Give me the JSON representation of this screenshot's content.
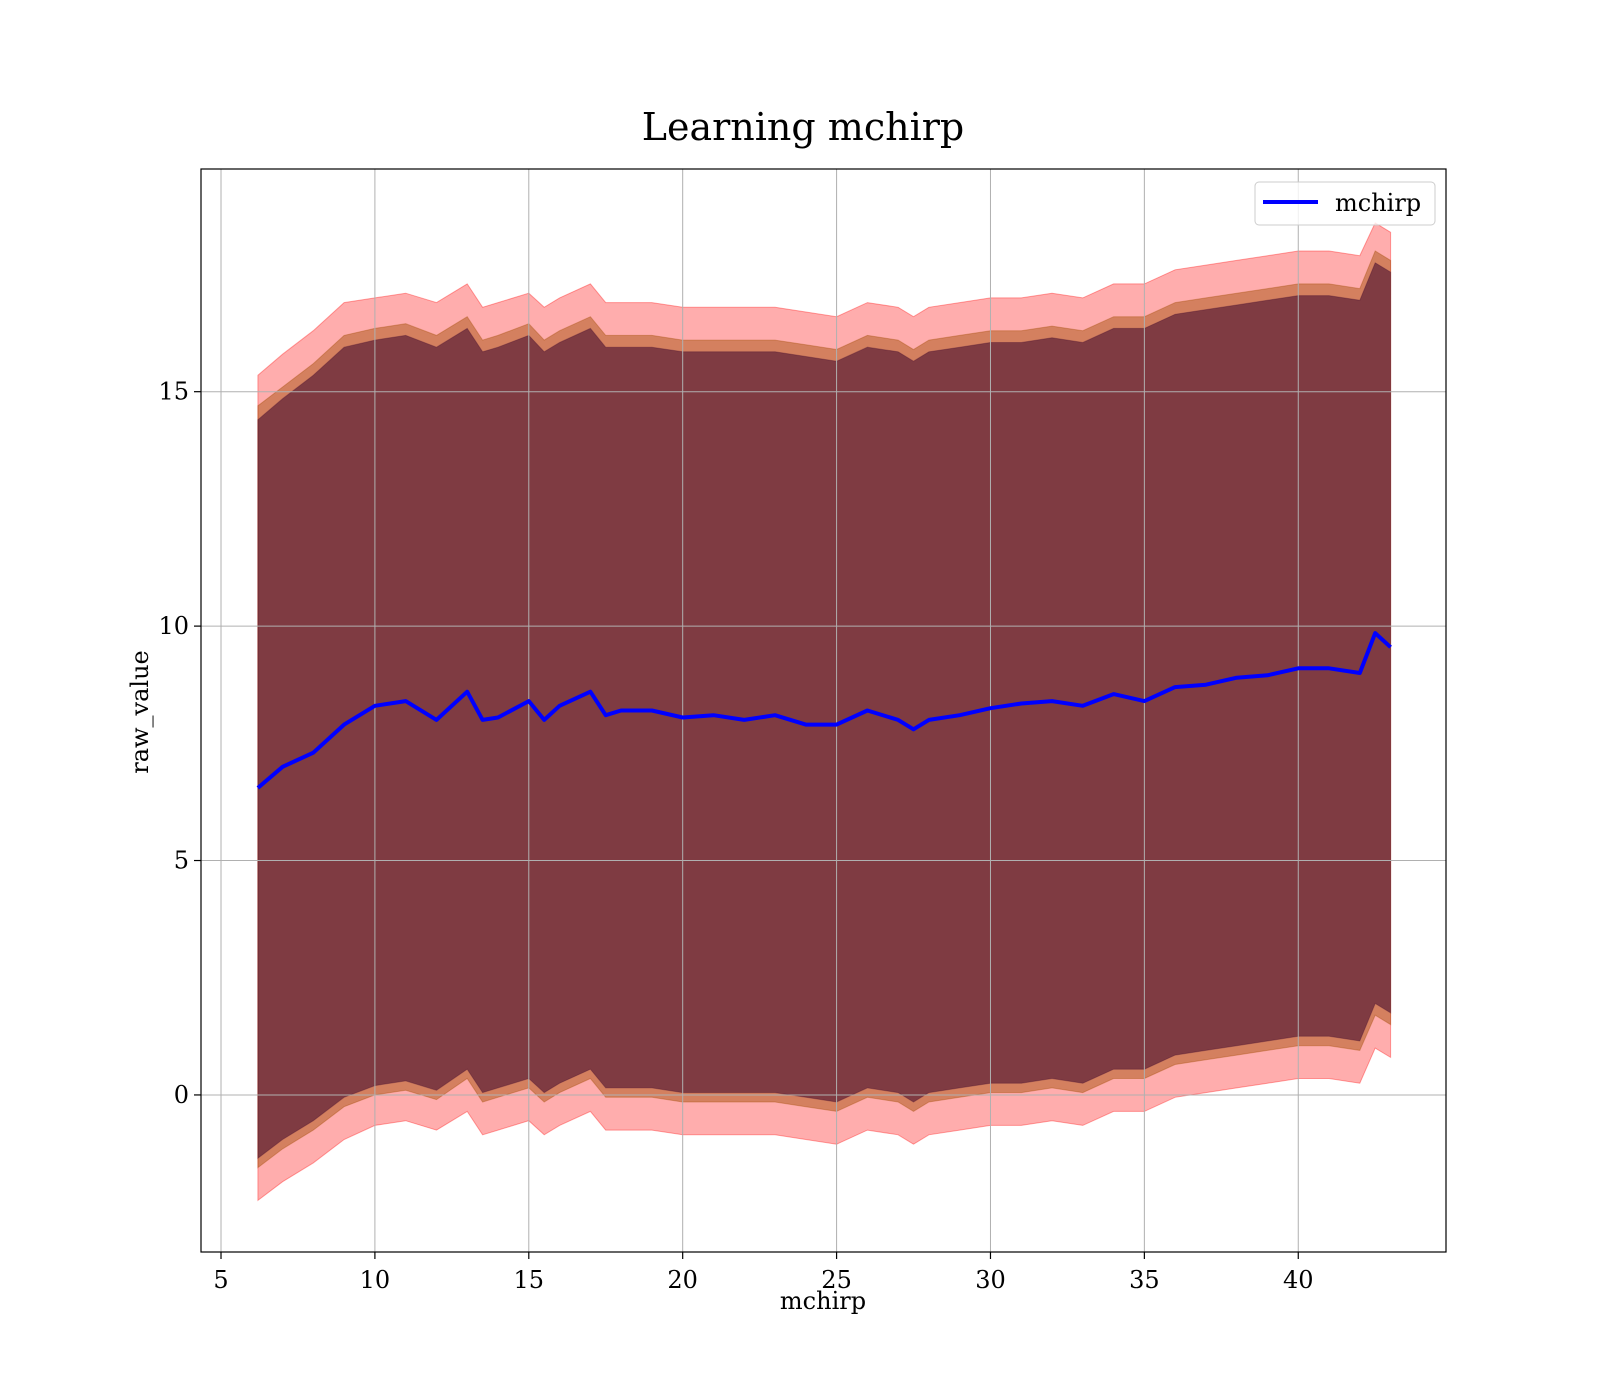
{
  "chart_data": {
    "type": "area",
    "title": "Learning mchirp",
    "xlabel": "mchirp",
    "ylabel": "raw_value",
    "xlim": [
      4.35,
      44.8
    ],
    "ylim": [
      -3.35,
      19.75
    ],
    "xticks": [
      5,
      10,
      15,
      20,
      25,
      30,
      35,
      40
    ],
    "yticks": [
      0,
      5,
      10,
      15
    ],
    "grid": true,
    "legend": {
      "position": "top-right",
      "entries": [
        "mchirp"
      ]
    },
    "colors": {
      "line": "#0000ff",
      "band_outer": "#ff0000",
      "band_middle": "#a04a00",
      "band_inner": "#4a1030",
      "grid": "#b0b0b0"
    },
    "series": [
      {
        "name": "mchirp",
        "x": [
          6.2,
          7.0,
          8.0,
          9.0,
          10.0,
          11.0,
          12.0,
          13.0,
          13.5,
          14.0,
          15.0,
          15.5,
          16.0,
          17.0,
          17.5,
          18.0,
          19.0,
          20.0,
          21.0,
          22.0,
          23.0,
          24.0,
          25.0,
          26.0,
          27.0,
          27.5,
          28.0,
          29.0,
          30.0,
          31.0,
          32.0,
          33.0,
          34.0,
          35.0,
          36.0,
          37.0,
          38.0,
          39.0,
          40.0,
          41.0,
          42.0,
          42.5,
          43.0
        ],
        "mean": [
          6.55,
          7.0,
          7.3,
          7.9,
          8.3,
          8.4,
          8.0,
          8.6,
          8.0,
          8.05,
          8.4,
          8.0,
          8.3,
          8.6,
          8.1,
          8.2,
          8.2,
          8.05,
          8.1,
          8.0,
          8.1,
          7.9,
          7.9,
          8.2,
          8.0,
          7.8,
          8.0,
          8.1,
          8.25,
          8.35,
          8.4,
          8.3,
          8.55,
          8.4,
          8.7,
          8.75,
          8.9,
          8.95,
          9.1,
          9.1,
          9.0,
          9.85,
          9.55
        ],
        "band_outer_upper": [
          15.35,
          15.8,
          16.3,
          16.9,
          17.0,
          17.1,
          16.9,
          17.3,
          16.8,
          16.9,
          17.1,
          16.8,
          17.0,
          17.3,
          16.9,
          16.9,
          16.9,
          16.8,
          16.8,
          16.8,
          16.8,
          16.7,
          16.6,
          16.9,
          16.8,
          16.6,
          16.8,
          16.9,
          17.0,
          17.0,
          17.1,
          17.0,
          17.3,
          17.3,
          17.6,
          17.7,
          17.8,
          17.9,
          18.0,
          18.0,
          17.9,
          18.6,
          18.4
        ],
        "band_middle_upper": [
          14.7,
          15.1,
          15.6,
          16.2,
          16.35,
          16.45,
          16.2,
          16.6,
          16.1,
          16.2,
          16.45,
          16.1,
          16.3,
          16.6,
          16.2,
          16.2,
          16.2,
          16.1,
          16.1,
          16.1,
          16.1,
          16.0,
          15.9,
          16.2,
          16.1,
          15.9,
          16.1,
          16.2,
          16.3,
          16.3,
          16.4,
          16.3,
          16.6,
          16.6,
          16.9,
          17.0,
          17.1,
          17.2,
          17.3,
          17.3,
          17.2,
          18.0,
          17.8
        ],
        "band_inner_upper": [
          14.4,
          14.85,
          15.35,
          15.95,
          16.1,
          16.2,
          15.95,
          16.35,
          15.85,
          15.95,
          16.2,
          15.85,
          16.05,
          16.35,
          15.95,
          15.95,
          15.95,
          15.85,
          15.85,
          15.85,
          15.85,
          15.75,
          15.65,
          15.95,
          15.85,
          15.65,
          15.85,
          15.95,
          16.05,
          16.05,
          16.15,
          16.05,
          16.35,
          16.35,
          16.65,
          16.75,
          16.85,
          16.95,
          17.05,
          17.05,
          16.95,
          17.75,
          17.55
        ],
        "band_inner_lower": [
          -1.35,
          -0.95,
          -0.55,
          -0.05,
          0.2,
          0.3,
          0.1,
          0.55,
          0.05,
          0.15,
          0.35,
          0.05,
          0.25,
          0.55,
          0.15,
          0.15,
          0.15,
          0.05,
          0.05,
          0.05,
          0.05,
          -0.05,
          -0.15,
          0.15,
          0.05,
          -0.15,
          0.05,
          0.15,
          0.25,
          0.25,
          0.35,
          0.25,
          0.55,
          0.55,
          0.85,
          0.95,
          1.05,
          1.15,
          1.25,
          1.25,
          1.15,
          1.95,
          1.75
        ],
        "band_middle_lower": [
          -1.55,
          -1.15,
          -0.75,
          -0.25,
          0.0,
          0.1,
          -0.1,
          0.35,
          -0.15,
          -0.05,
          0.15,
          -0.15,
          0.05,
          0.35,
          -0.05,
          -0.05,
          -0.05,
          -0.15,
          -0.15,
          -0.15,
          -0.15,
          -0.25,
          -0.35,
          -0.05,
          -0.15,
          -0.35,
          -0.15,
          -0.05,
          0.05,
          0.05,
          0.15,
          0.05,
          0.35,
          0.35,
          0.65,
          0.75,
          0.85,
          0.95,
          1.05,
          1.05,
          0.95,
          1.7,
          1.5
        ],
        "band_outer_lower": [
          -2.25,
          -1.85,
          -1.45,
          -0.95,
          -0.65,
          -0.55,
          -0.75,
          -0.35,
          -0.85,
          -0.75,
          -0.55,
          -0.85,
          -0.65,
          -0.35,
          -0.75,
          -0.75,
          -0.75,
          -0.85,
          -0.85,
          -0.85,
          -0.85,
          -0.95,
          -1.05,
          -0.75,
          -0.85,
          -1.05,
          -0.85,
          -0.75,
          -0.65,
          -0.65,
          -0.55,
          -0.65,
          -0.35,
          -0.35,
          -0.05,
          0.05,
          0.15,
          0.25,
          0.35,
          0.35,
          0.25,
          1.0,
          0.8
        ]
      }
    ]
  }
}
